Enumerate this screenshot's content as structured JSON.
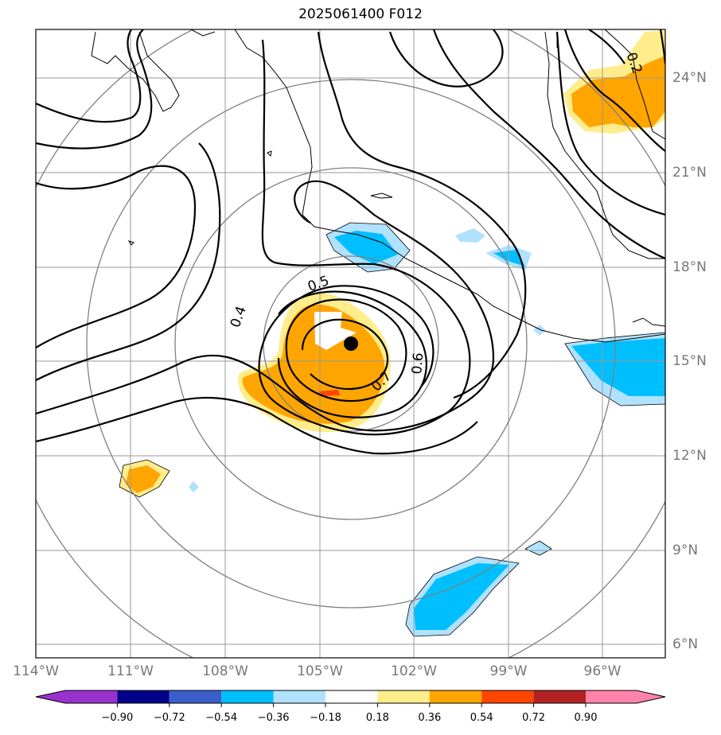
{
  "title": "2025061400 F012",
  "lon_labels": [
    "114°W",
    "111°W",
    "108°W",
    "105°W",
    "102°W",
    "99°W",
    "96°W"
  ],
  "lat_labels": [
    "24°N",
    "21°N",
    "18°N",
    "15°N",
    "12°N",
    "9°N",
    "6°N"
  ],
  "colorbar": {
    "ticks": [
      "−0.90",
      "−0.72",
      "−0.54",
      "−0.36",
      "−0.18",
      "0.18",
      "0.36",
      "0.54",
      "0.72",
      "0.90"
    ],
    "colors": [
      "#9932cc",
      "#00008b",
      "#3a5fcd",
      "#00bfff",
      "#b0e2ff",
      "#ffffff",
      "#ffec8b",
      "#ffa500",
      "#ff4500",
      "#b22222",
      "#ff82ab"
    ]
  },
  "contour_labels": [
    "0.2",
    "0.4",
    "0.5",
    "0.6",
    "0.7"
  ],
  "colors": {
    "positive_weak": "#ffec8b",
    "positive": "#ffa500",
    "positive_strong": "#ff4500",
    "negative_weak": "#b0e2ff",
    "negative": "#00bfff",
    "grid": "#999999",
    "rings": "#808080"
  },
  "center_marker": "black-dot"
}
